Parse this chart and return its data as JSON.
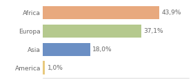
{
  "categories": [
    "Africa",
    "Europa",
    "Asia",
    "America"
  ],
  "values": [
    43.9,
    37.1,
    18.0,
    1.0
  ],
  "bar_colors": [
    "#e8a97e",
    "#b5c98e",
    "#6b8fc4",
    "#e8c97e"
  ],
  "labels": [
    "43,9%",
    "37,1%",
    "18,0%",
    "1,0%"
  ],
  "xlim": [
    0,
    55
  ],
  "background_color": "#ffffff",
  "text_color": "#666666",
  "label_fontsize": 6.5,
  "tick_fontsize": 6.5,
  "bar_height": 0.72
}
